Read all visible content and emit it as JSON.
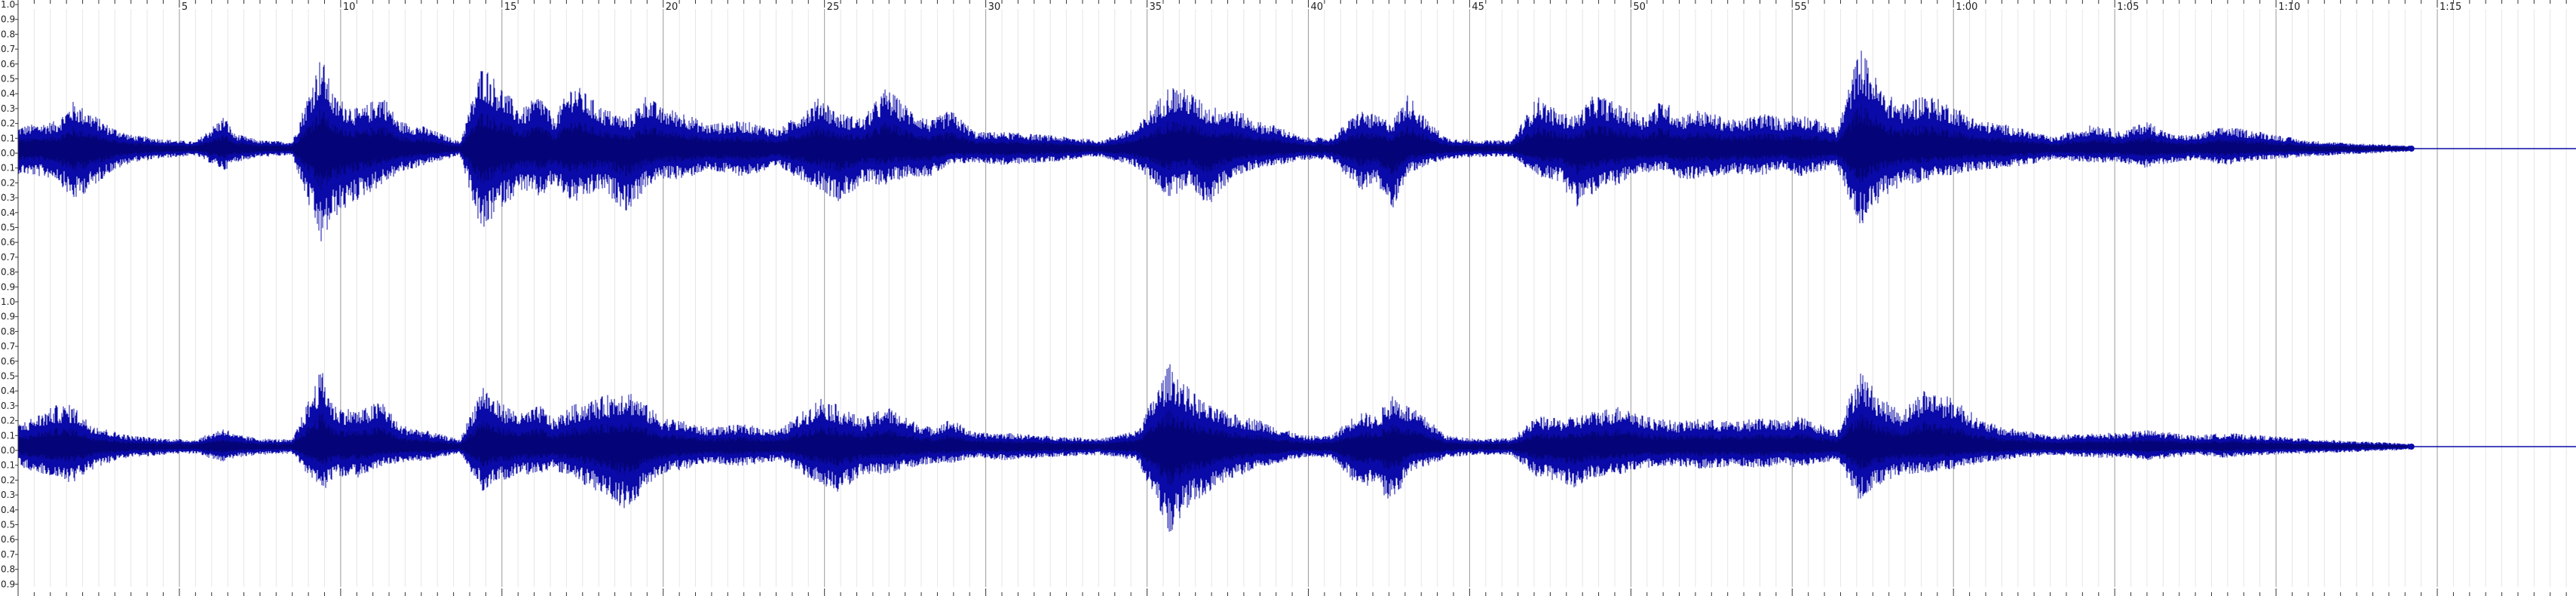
{
  "editor": {
    "channels": [
      {
        "name": "channel-left"
      },
      {
        "name": "channel-right"
      }
    ],
    "amplitude_labels": [
      "1.0",
      "0.9",
      "0.8",
      "0.7",
      "0.6",
      "0.5",
      "0.4",
      "0.3",
      "0.2",
      "0.1",
      "0.0",
      "0.1",
      "0.2",
      "0.3",
      "0.4",
      "0.5",
      "0.6",
      "0.7",
      "0.8",
      "0.9"
    ],
    "timeline": {
      "major_interval_seconds": 5,
      "minor_interval_seconds": 0.5,
      "visible_duration_seconds": 79.3,
      "labels": [
        "5",
        "10",
        "15",
        "20",
        "25",
        "30",
        "35",
        "40",
        "45",
        "50",
        "55",
        "1:00",
        "1:05",
        "1:10",
        "1:15"
      ]
    },
    "audio_end_seconds": 74.2,
    "colors": {
      "waveform": "#0a0aa8",
      "waveform_dark": "#000050",
      "background": "#ffffff",
      "grid_major": "#9a9a9a",
      "grid_minor": "#e6e6e6",
      "centerline": "#0a0aa8"
    },
    "envelope_seconds": [
      0,
      1.2,
      1.7,
      2.2,
      2.8,
      3.5,
      4.5,
      5.5,
      6.4,
      6.7,
      7.5,
      8.5,
      9.4,
      9.8,
      10.6,
      11.3,
      11.8,
      12.6,
      13.7,
      14.4,
      14.8,
      15.6,
      16.2,
      16.6,
      17.2,
      18.1,
      18.9,
      19.5,
      19.9,
      20.7,
      21.3,
      22.5,
      23.6,
      24.9,
      25.4,
      26.2,
      26.9,
      27.6,
      28.3,
      28.9,
      29.7,
      30.6,
      31.8,
      33.6,
      34.7,
      35.7,
      36.3,
      36.9,
      37.6,
      38.4,
      39.1,
      39.8,
      40.7,
      41.6,
      42.1,
      42.6,
      43.1,
      43.7,
      44.3,
      45.2,
      46.3,
      47.1,
      47.8,
      48.3,
      48.9,
      49.8,
      50.4,
      51.0,
      51.5,
      52.1,
      53.3,
      54.1,
      54.7,
      55.2,
      55.9,
      56.4,
      57.1,
      57.8,
      58.4,
      59.1,
      60.1,
      60.8,
      61.5,
      62.2,
      63.1,
      64.4,
      65.2,
      66.0,
      66.8,
      67.5,
      68.4,
      69.6,
      70.9,
      72.3,
      73.5,
      74.2
    ],
    "envelope_top": [
      0.16,
      0.2,
      0.34,
      0.27,
      0.17,
      0.1,
      0.07,
      0.05,
      0.24,
      0.11,
      0.06,
      0.05,
      0.68,
      0.38,
      0.28,
      0.4,
      0.2,
      0.16,
      0.05,
      0.62,
      0.5,
      0.28,
      0.4,
      0.22,
      0.48,
      0.3,
      0.22,
      0.4,
      0.3,
      0.26,
      0.18,
      0.2,
      0.14,
      0.38,
      0.26,
      0.22,
      0.44,
      0.3,
      0.2,
      0.28,
      0.12,
      0.12,
      0.1,
      0.06,
      0.16,
      0.46,
      0.42,
      0.3,
      0.3,
      0.2,
      0.16,
      0.08,
      0.08,
      0.28,
      0.24,
      0.2,
      0.4,
      0.2,
      0.08,
      0.06,
      0.06,
      0.38,
      0.26,
      0.24,
      0.4,
      0.3,
      0.24,
      0.36,
      0.24,
      0.28,
      0.2,
      0.26,
      0.22,
      0.26,
      0.2,
      0.14,
      0.74,
      0.42,
      0.32,
      0.4,
      0.3,
      0.2,
      0.18,
      0.14,
      0.08,
      0.18,
      0.12,
      0.2,
      0.1,
      0.1,
      0.16,
      0.12,
      0.06,
      0.04,
      0.03,
      0.02
    ],
    "envelope_bottom_left": [
      0.18,
      0.22,
      0.38,
      0.3,
      0.18,
      0.1,
      0.07,
      0.05,
      0.16,
      0.1,
      0.06,
      0.05,
      0.7,
      0.5,
      0.36,
      0.26,
      0.18,
      0.12,
      0.05,
      0.64,
      0.46,
      0.3,
      0.36,
      0.26,
      0.4,
      0.3,
      0.46,
      0.28,
      0.22,
      0.22,
      0.16,
      0.2,
      0.14,
      0.3,
      0.38,
      0.26,
      0.26,
      0.2,
      0.2,
      0.12,
      0.1,
      0.12,
      0.1,
      0.06,
      0.14,
      0.36,
      0.26,
      0.42,
      0.22,
      0.14,
      0.12,
      0.08,
      0.08,
      0.3,
      0.26,
      0.44,
      0.18,
      0.12,
      0.08,
      0.06,
      0.06,
      0.2,
      0.24,
      0.42,
      0.32,
      0.24,
      0.18,
      0.16,
      0.22,
      0.22,
      0.18,
      0.2,
      0.14,
      0.2,
      0.16,
      0.14,
      0.56,
      0.36,
      0.26,
      0.24,
      0.18,
      0.16,
      0.14,
      0.12,
      0.08,
      0.1,
      0.1,
      0.14,
      0.1,
      0.08,
      0.12,
      0.08,
      0.06,
      0.04,
      0.03,
      0.02
    ],
    "envelope_top_right": [
      0.16,
      0.3,
      0.3,
      0.18,
      0.12,
      0.08,
      0.06,
      0.05,
      0.14,
      0.09,
      0.06,
      0.05,
      0.56,
      0.3,
      0.26,
      0.34,
      0.16,
      0.12,
      0.05,
      0.46,
      0.34,
      0.24,
      0.3,
      0.2,
      0.3,
      0.36,
      0.42,
      0.3,
      0.22,
      0.18,
      0.14,
      0.16,
      0.12,
      0.36,
      0.3,
      0.2,
      0.3,
      0.2,
      0.14,
      0.2,
      0.1,
      0.1,
      0.08,
      0.06,
      0.12,
      0.6,
      0.42,
      0.3,
      0.24,
      0.2,
      0.14,
      0.08,
      0.08,
      0.26,
      0.22,
      0.38,
      0.3,
      0.2,
      0.08,
      0.06,
      0.06,
      0.22,
      0.2,
      0.22,
      0.26,
      0.3,
      0.22,
      0.2,
      0.18,
      0.2,
      0.18,
      0.22,
      0.18,
      0.22,
      0.16,
      0.12,
      0.56,
      0.34,
      0.26,
      0.42,
      0.34,
      0.2,
      0.14,
      0.12,
      0.08,
      0.1,
      0.1,
      0.12,
      0.1,
      0.08,
      0.1,
      0.08,
      0.06,
      0.04,
      0.03,
      0.02
    ],
    "envelope_bottom_right": [
      0.14,
      0.24,
      0.26,
      0.18,
      0.12,
      0.08,
      0.06,
      0.05,
      0.12,
      0.08,
      0.06,
      0.05,
      0.34,
      0.22,
      0.22,
      0.14,
      0.12,
      0.1,
      0.05,
      0.32,
      0.26,
      0.2,
      0.2,
      0.16,
      0.24,
      0.34,
      0.46,
      0.28,
      0.2,
      0.16,
      0.12,
      0.14,
      0.1,
      0.28,
      0.34,
      0.2,
      0.2,
      0.16,
      0.12,
      0.12,
      0.08,
      0.1,
      0.08,
      0.06,
      0.1,
      0.64,
      0.44,
      0.34,
      0.24,
      0.16,
      0.12,
      0.08,
      0.08,
      0.3,
      0.26,
      0.44,
      0.2,
      0.14,
      0.08,
      0.06,
      0.06,
      0.22,
      0.26,
      0.3,
      0.22,
      0.2,
      0.16,
      0.14,
      0.14,
      0.16,
      0.14,
      0.16,
      0.12,
      0.16,
      0.12,
      0.1,
      0.4,
      0.26,
      0.2,
      0.2,
      0.16,
      0.12,
      0.1,
      0.08,
      0.06,
      0.08,
      0.08,
      0.1,
      0.08,
      0.06,
      0.08,
      0.06,
      0.05,
      0.04,
      0.03,
      0.02
    ]
  }
}
